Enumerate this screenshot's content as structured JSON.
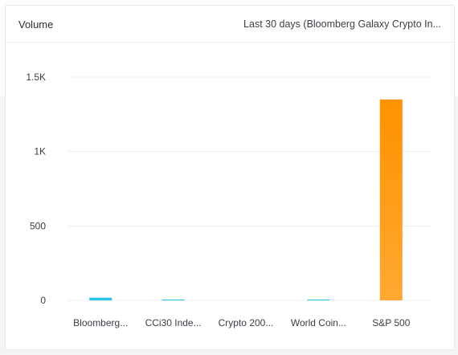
{
  "header": {
    "title": "Volume",
    "range_label": "Last 30 days (Bloomberg Galaxy Crypto In..."
  },
  "chart_data": {
    "type": "bar",
    "categories": [
      "Bloomberg...",
      "CCi30 Inde...",
      "Crypto 200...",
      "World Coin...",
      "S&P 500"
    ],
    "values": [
      18,
      3,
      0,
      4,
      1350
    ],
    "y_ticks": [
      0,
      500,
      1000,
      1500
    ],
    "y_tick_labels": [
      "0",
      "500",
      "1K",
      "1.5K"
    ],
    "ylim": [
      0,
      1500
    ],
    "grid": true,
    "colors": [
      "#29c3e6",
      "#29c3e6",
      "#29c3e6",
      "#29c3e6",
      "#ff9900"
    ]
  }
}
